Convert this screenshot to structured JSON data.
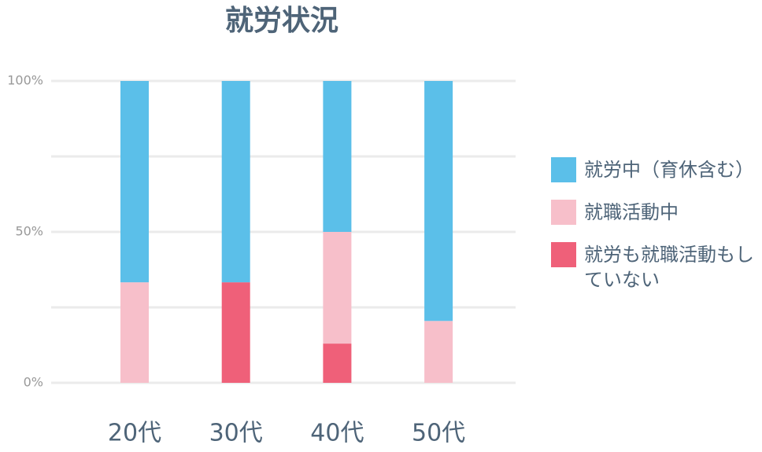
{
  "chart_data": {
    "type": "stacked_bar",
    "title": "就労状況",
    "categories": [
      "20代",
      "30代",
      "40代",
      "50代"
    ],
    "series": [
      {
        "name": "就労も就職活動もしていない",
        "color": "#ef6079",
        "values": [
          0,
          33.3,
          13,
          0
        ]
      },
      {
        "name": "就職活動中",
        "color": "#f7bfca",
        "values": [
          33.3,
          0,
          37,
          20.5
        ]
      },
      {
        "name": "就労中（育休含む）",
        "color": "#5bbfe9",
        "values": [
          66.7,
          66.7,
          50,
          79.5
        ]
      }
    ],
    "ylim": [
      0,
      100
    ],
    "yticks": [
      {
        "value": 0,
        "label": "0%"
      },
      {
        "value": 25,
        "label": null
      },
      {
        "value": 50,
        "label": "50%"
      },
      {
        "value": 75,
        "label": null
      },
      {
        "value": 100,
        "label": "100%"
      }
    ],
    "grid": true
  }
}
